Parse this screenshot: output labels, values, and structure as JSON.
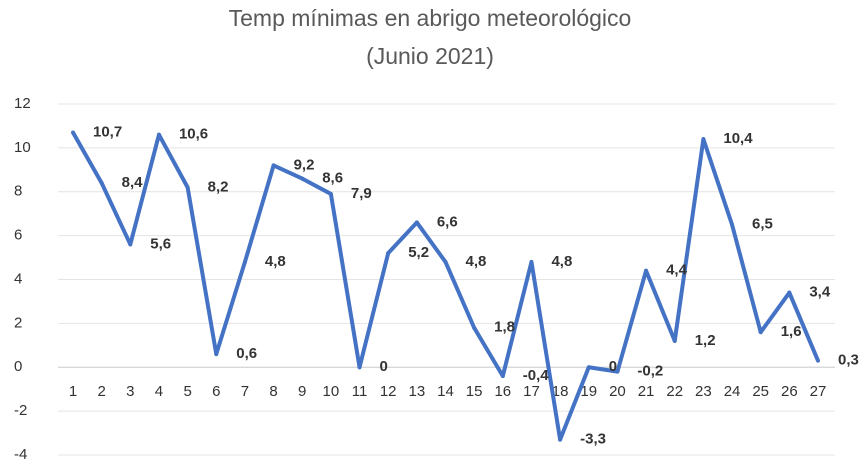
{
  "chart_data": {
    "type": "line",
    "title": "Temp mínimas en abrigo meteorológico",
    "subtitle": "(Junio 2021)",
    "categories": [
      "1",
      "2",
      "3",
      "4",
      "5",
      "6",
      "7",
      "8",
      "9",
      "10",
      "11",
      "12",
      "13",
      "14",
      "15",
      "16",
      "17",
      "18",
      "19",
      "20",
      "21",
      "22",
      "23",
      "24",
      "25",
      "26",
      "27"
    ],
    "values": [
      10.7,
      8.4,
      5.6,
      10.6,
      8.2,
      0.6,
      4.8,
      9.2,
      8.6,
      7.9,
      0,
      5.2,
      6.6,
      4.8,
      1.8,
      -0.4,
      4.8,
      -3.3,
      0,
      -0.2,
      4.4,
      1.2,
      10.4,
      6.5,
      1.6,
      3.4,
      0.3
    ],
    "value_labels": [
      "10,7",
      "8,4",
      "5,6",
      "10,6",
      "8,2",
      "0,6",
      "4,8",
      "9,2",
      "8,6",
      "7,9",
      "0",
      "5,2",
      "6,6",
      "4,8",
      "1,8",
      "-0,4",
      "4,8",
      "-3,3",
      "0",
      "-0,2",
      "4,4",
      "1,2",
      "10,4",
      "6,5",
      "1,6",
      "3,4",
      "0,3"
    ],
    "color": "#4472c4",
    "ylim": [
      -4,
      12
    ],
    "yticks": [
      -4,
      -2,
      0,
      2,
      4,
      6,
      8,
      10,
      12
    ],
    "grid": true
  }
}
